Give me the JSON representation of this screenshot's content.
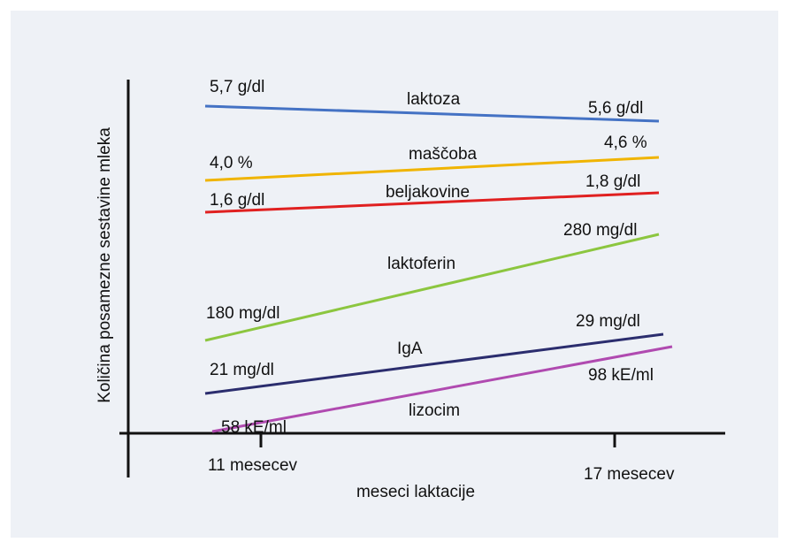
{
  "y_axis_label": "Količina posamezne sestavine mleka",
  "x_axis_label": "meseci laktacije",
  "x_ticks": [
    "11 mesecev",
    "17 mesecev"
  ],
  "lines": [
    {
      "name": "laktoza",
      "color": "#4472c4",
      "start": "5,7 g/dl",
      "end": "5,6 g/dl"
    },
    {
      "name": "maščoba",
      "color": "#f0b400",
      "start": "4,0 %",
      "end": "4,6 %"
    },
    {
      "name": "beljakovine",
      "color": "#e02020",
      "start": "1,6 g/dl",
      "end": "1,8 g/dl"
    },
    {
      "name": "laktoferin",
      "color": "#8cc63f",
      "start": "180 mg/dl",
      "end": "280 mg/dl"
    },
    {
      "name": "IgA",
      "color": "#2b2d6e",
      "start": "21 mg/dl",
      "end": "29 mg/dl"
    },
    {
      "name": "lizocim",
      "color": "#b04ab0",
      "start": "58 kE/ml",
      "end": "98 kE/ml"
    }
  ]
}
